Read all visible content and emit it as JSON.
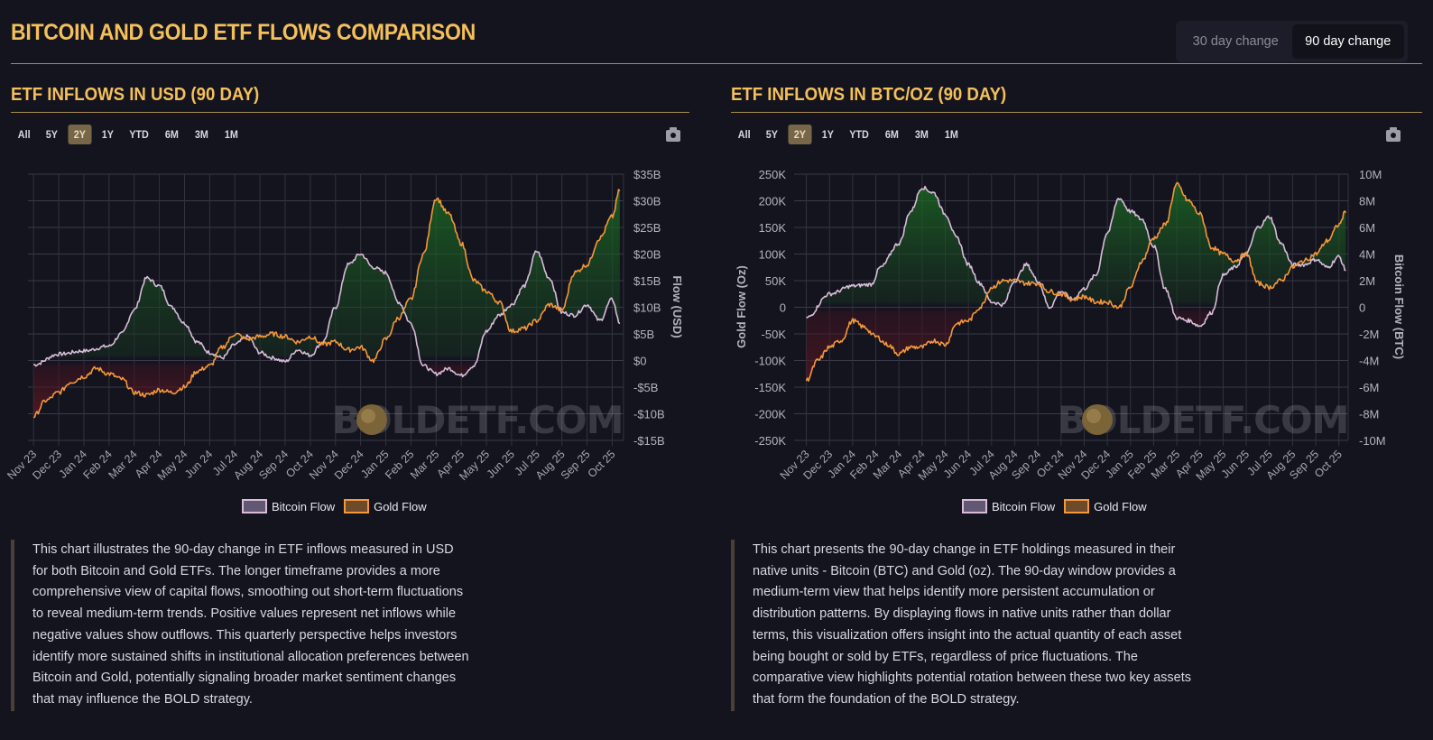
{
  "header": {
    "title": "BITCOIN AND GOLD ETF FLOWS COMPARISON",
    "toggle": [
      {
        "label": "30 day change",
        "active": false
      },
      {
        "label": "90 day change",
        "active": true
      }
    ]
  },
  "range_buttons": [
    {
      "label": "All",
      "active": false
    },
    {
      "label": "5Y",
      "active": false
    },
    {
      "label": "2Y",
      "active": true
    },
    {
      "label": "1Y",
      "active": false
    },
    {
      "label": "YTD",
      "active": false
    },
    {
      "label": "6M",
      "active": false
    },
    {
      "label": "3M",
      "active": false
    },
    {
      "label": "1M",
      "active": false
    }
  ],
  "watermark": "BOLDETF.COM",
  "colors": {
    "bitcoin": "#d8bcd8",
    "gold": "#f4983a",
    "positive_fill": "#145a1c",
    "negative_fill": "#5a141c",
    "title_gold": "#f5c05a"
  },
  "chart_data": [
    {
      "type": "line",
      "title": "ETF INFLOWS IN USD (90 DAY)",
      "xlabel": "",
      "ylabel": "Flow (USD)",
      "y_axis_side": "right",
      "ylim": [
        -15,
        35
      ],
      "y_ticks": [
        35,
        30,
        25,
        20,
        15,
        10,
        5,
        0,
        -5,
        -10,
        -15
      ],
      "y_tick_labels": [
        "$35B",
        "$30B",
        "$25B",
        "$20B",
        "$15B",
        "$10B",
        "$5B",
        "$0",
        "-$5B",
        "-$10B",
        "-$15B"
      ],
      "unit": "USD billions",
      "x_tick_labels": [
        "Nov 23",
        "Dec 23",
        "Jan 24",
        "Feb 24",
        "Mar 24",
        "Apr 24",
        "May 24",
        "Jun 24",
        "Jul 24",
        "Aug 24",
        "Sep 24",
        "Oct 24",
        "Nov 24",
        "Dec 24",
        "Jan 25",
        "Feb 25",
        "Mar 25",
        "Apr 25",
        "May 25",
        "Jun 25",
        "Jul 25",
        "Aug 25",
        "Sep 25",
        "Oct 25"
      ],
      "grid": true,
      "legend_position": "bottom-center",
      "series": [
        {
          "name": "Bitcoin Flow",
          "color": "#d8bcd8",
          "x_months": [
            0,
            1,
            2,
            3,
            3.5,
            4,
            4.5,
            5,
            5.5,
            6,
            6.5,
            7,
            7.5,
            8,
            8.5,
            9,
            9.5,
            10,
            10.5,
            11,
            11.5,
            12,
            12.5,
            13,
            13.5,
            14,
            14.5,
            15,
            15.5,
            16,
            16.5,
            17,
            17.5,
            18,
            18.5,
            19,
            19.5,
            20,
            20.5,
            21,
            21.5,
            22,
            22.5,
            23,
            23.3
          ],
          "values": [
            -0.8,
            1.2,
            1.8,
            2.7,
            5.0,
            9.5,
            15.5,
            14.0,
            10.0,
            7.0,
            3.5,
            1.5,
            0.5,
            3.0,
            4.5,
            1.5,
            0.5,
            -0.2,
            2.0,
            1.0,
            3.5,
            10.0,
            18.0,
            20.0,
            17.5,
            16.5,
            11.0,
            7.0,
            -1.0,
            -2.5,
            -1.5,
            -2.8,
            -1.0,
            5.5,
            8.5,
            10.5,
            14.0,
            20.5,
            15.5,
            9.0,
            8.5,
            10.5,
            7.5,
            11.5,
            7.0
          ]
        },
        {
          "name": "Gold Flow",
          "color": "#f4983a",
          "x_months": [
            0,
            0.5,
            1,
            1.5,
            2,
            2.5,
            3,
            3.5,
            4,
            4.5,
            5,
            5.5,
            6,
            6.5,
            7,
            7.5,
            8,
            8.5,
            9,
            9.5,
            10,
            10.5,
            11,
            11.5,
            12,
            12.5,
            13,
            13.5,
            14,
            14.5,
            15,
            15.5,
            16,
            16.5,
            17,
            17.5,
            18,
            18.5,
            19,
            19.5,
            20,
            20.5,
            21,
            21.5,
            22,
            22.5,
            23,
            23.3
          ],
          "values": [
            -10.5,
            -7.5,
            -6.0,
            -4.0,
            -3.0,
            -1.5,
            -2.5,
            -3.5,
            -6.0,
            -6.5,
            -5.5,
            -6.0,
            -5.0,
            -2.0,
            -1.0,
            2.5,
            5.0,
            4.0,
            4.5,
            5.0,
            4.5,
            3.5,
            4.5,
            3.0,
            3.5,
            2.0,
            2.5,
            0.0,
            4.0,
            8.0,
            11.5,
            20.0,
            30.5,
            27.5,
            22.0,
            15.0,
            13.0,
            11.0,
            5.5,
            6.0,
            7.5,
            10.5,
            9.5,
            16.5,
            18.0,
            23.0,
            27.0,
            32.0
          ]
        }
      ]
    },
    {
      "type": "line",
      "title": "ETF INFLOWS IN BTC/OZ (90 DAY)",
      "xlabel": "",
      "ylabel_left": "Gold Flow (Oz)",
      "ylabel_right": "Bitcoin Flow (BTC)",
      "ylim_left": [
        -250000,
        250000
      ],
      "ylim_right": [
        -10000000,
        10000000
      ],
      "y_tick_labels_left": [
        "250K",
        "200K",
        "150K",
        "100K",
        "50K",
        "0",
        "-50K",
        "-100K",
        "-150K",
        "-200K",
        "-250K"
      ],
      "y_tick_labels_right": [
        "10M",
        "8M",
        "6M",
        "4M",
        "2M",
        "0",
        "-2M",
        "-4M",
        "-6M",
        "-8M",
        "-10M"
      ],
      "x_tick_labels": [
        "Nov 23",
        "Dec 23",
        "Jan 24",
        "Feb 24",
        "Mar 24",
        "Apr 24",
        "May 24",
        "Jun 24",
        "Jul 24",
        "Aug 24",
        "Sep 24",
        "Oct 24",
        "Nov 24",
        "Dec 24",
        "Jan 25",
        "Feb 25",
        "Mar 25",
        "Apr 25",
        "May 25",
        "Jun 25",
        "Jul 25",
        "Aug 25",
        "Sep 25",
        "Oct 25"
      ],
      "grid": true,
      "legend_position": "bottom-center",
      "series": [
        {
          "name": "Bitcoin Flow",
          "color": "#d8bcd8",
          "axis": "left",
          "x_months": [
            0,
            1,
            2,
            2.8,
            3.2,
            4,
            4.5,
            5,
            5.5,
            6,
            6.5,
            7,
            7.5,
            8,
            8.5,
            9,
            9.5,
            10,
            10.5,
            11,
            11.5,
            12,
            12.5,
            13,
            13.5,
            14,
            14.5,
            15,
            15.5,
            16,
            16.5,
            17,
            17.5,
            18,
            18.5,
            19,
            19.5,
            20,
            20.5,
            21,
            21.5,
            22,
            22.5,
            23,
            23.3
          ],
          "values": [
            -20000,
            25000,
            40000,
            43000,
            75000,
            120000,
            180000,
            225000,
            215000,
            175000,
            130000,
            80000,
            45000,
            10000,
            5000,
            50000,
            80000,
            50000,
            0,
            30000,
            15000,
            35000,
            60000,
            140000,
            205000,
            180000,
            165000,
            115000,
            35000,
            -20000,
            -25000,
            -35000,
            -10000,
            60000,
            75000,
            100000,
            150000,
            170000,
            120000,
            80000,
            80000,
            90000,
            75000,
            95000,
            70000
          ]
        },
        {
          "name": "Gold Flow",
          "color": "#f4983a",
          "axis": "right",
          "x_months": [
            0,
            0.5,
            1,
            1.5,
            2,
            2.5,
            3,
            3.5,
            4,
            4.5,
            5,
            5.5,
            6,
            6.5,
            7,
            7.5,
            8,
            8.5,
            9,
            9.5,
            10,
            10.5,
            11,
            11.5,
            12,
            12.5,
            13,
            13.5,
            14,
            14.5,
            15,
            15.5,
            16,
            16.5,
            17,
            17.5,
            18,
            18.5,
            19,
            19.5,
            20,
            20.5,
            21,
            21.5,
            22,
            22.5,
            23,
            23.3
          ],
          "values": [
            -5500,
            -4000,
            -3000,
            -2500,
            -1000,
            -1500,
            -2200,
            -2800,
            -3500,
            -3000,
            -3000,
            -2500,
            -2800,
            -1200,
            -1000,
            0,
            1500,
            2000,
            2000,
            1800,
            1800,
            1200,
            1000,
            600,
            800,
            400,
            400,
            0,
            1500,
            3500,
            5200,
            6200,
            9200,
            8000,
            7000,
            4500,
            4000,
            3500,
            4000,
            1800,
            1500,
            2000,
            3000,
            3500,
            4000,
            5000,
            6200,
            7200
          ]
        }
      ]
    }
  ],
  "charts": [
    {
      "title": "ETF INFLOWS IN USD (90 DAY)",
      "legend": [
        "Bitcoin Flow",
        "Gold Flow"
      ],
      "y_axis_title": "Flow (USD)",
      "description": "This chart illustrates the 90-day change in ETF inflows measured in USD for both Bitcoin and Gold ETFs. The longer timeframe provides a more comprehensive view of capital flows, smoothing out short-term fluctuations to reveal medium-term trends. Positive values represent net inflows while negative values show outflows. This quarterly perspective helps investors identify more sustained shifts in institutional allocation preferences between Bitcoin and Gold, potentially signaling broader market sentiment changes that may influence the BOLD strategy."
    },
    {
      "title": "ETF INFLOWS IN BTC/OZ (90 DAY)",
      "legend": [
        "Bitcoin Flow",
        "Gold Flow"
      ],
      "y_axis_title_left": "Gold Flow (Oz)",
      "y_axis_title_right": "Bitcoin Flow (BTC)",
      "description": "This chart presents the 90-day change in ETF holdings measured in their native units - Bitcoin (BTC) and Gold (oz). The 90-day window provides a medium-term view that helps identify more persistent accumulation or distribution patterns. By displaying flows in native units rather than dollar terms, this visualization offers insight into the actual quantity of each asset being bought or sold by ETFs, regardless of price fluctuations. The comparative view highlights potential rotation between these two key assets that form the foundation of the BOLD strategy."
    }
  ]
}
